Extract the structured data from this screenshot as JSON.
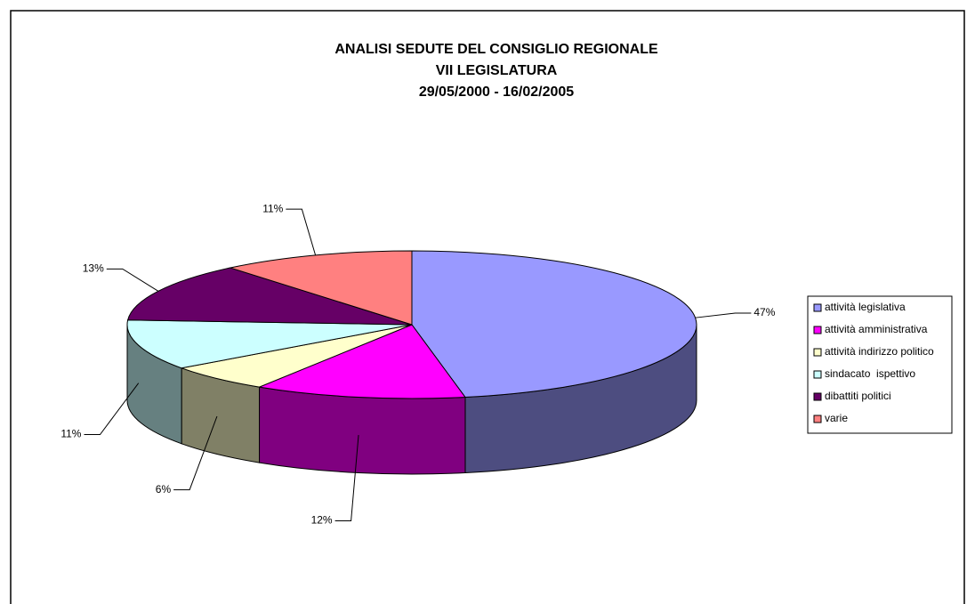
{
  "chart_data": {
    "type": "pie3d",
    "title": [
      "ANALISI SEDUTE DEL CONSIGLIO REGIONALE",
      "VII LEGISLATURA",
      "29/05/2000 - 16/02/2005"
    ],
    "categories": [
      "attività legislativa",
      "attività amministrativa",
      "attività indirizzo politico",
      "sindacato  ispettivo",
      "dibattiti politici",
      "varie"
    ],
    "values": [
      47,
      12,
      6,
      11,
      13,
      11
    ],
    "value_labels": [
      "47%",
      "12%",
      "6%",
      "11%",
      "13%",
      "11%"
    ],
    "colors": [
      "#9999ff",
      "#ff00ff",
      "#ffffcc",
      "#ccffff",
      "#660066",
      "#ff8080"
    ],
    "legend": "right"
  }
}
